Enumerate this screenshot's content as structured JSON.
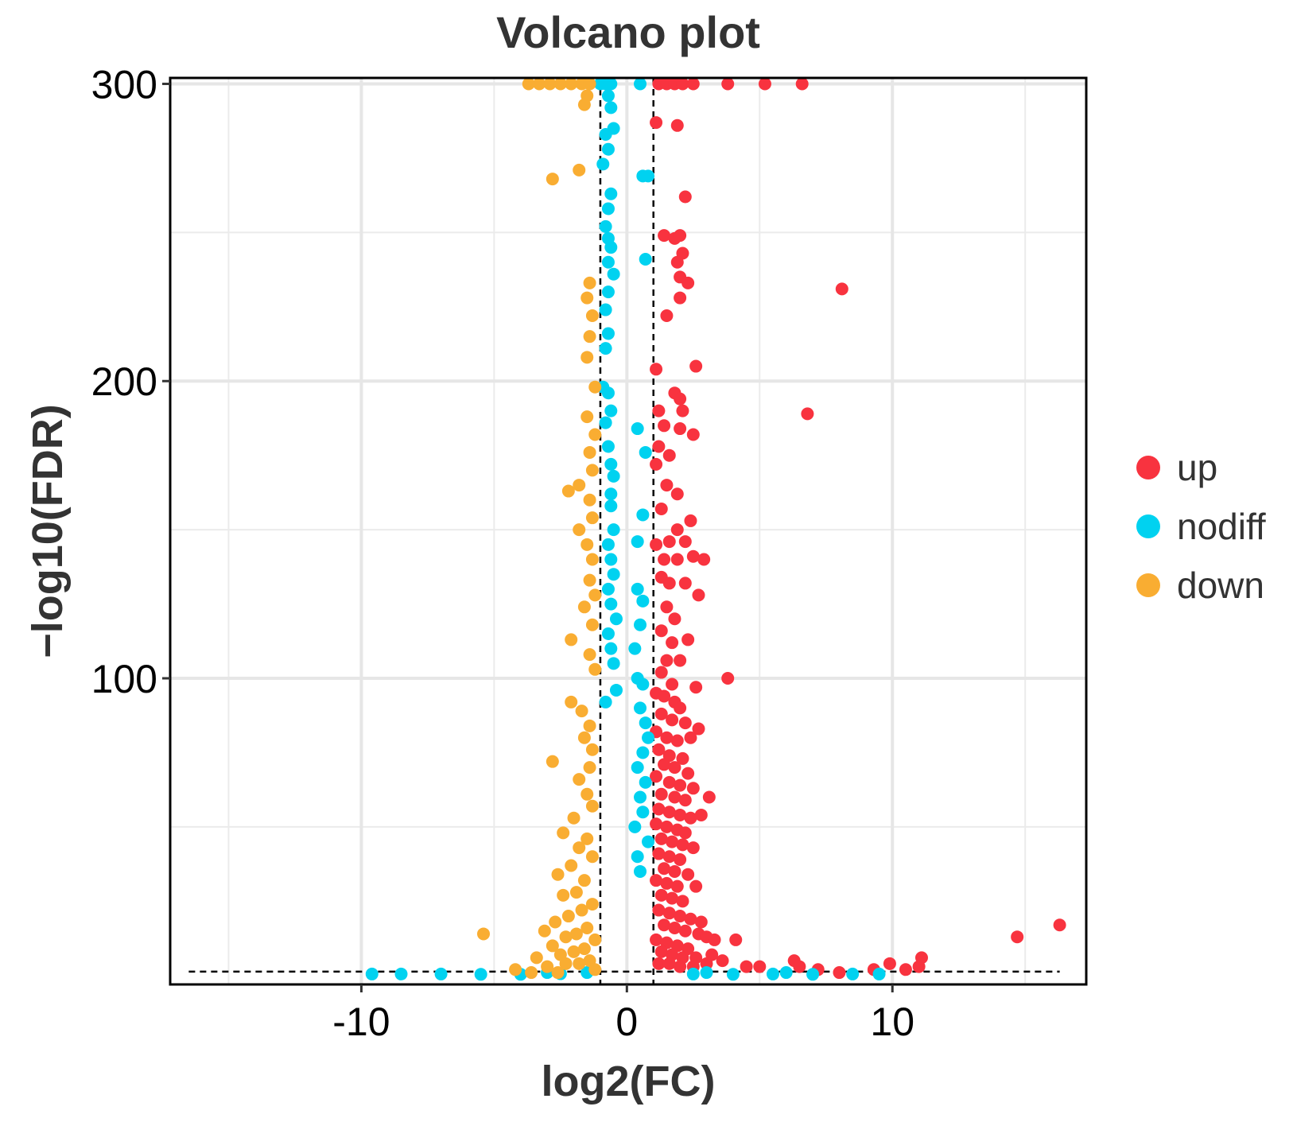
{
  "chart_data": {
    "type": "scatter",
    "title": "Volcano plot",
    "xlabel": "log2(FC)",
    "ylabel": "−log10(FDR)",
    "xlim": [
      -17.2,
      17.3
    ],
    "ylim": [
      -3,
      302
    ],
    "x_ticks": [
      -10,
      0,
      10
    ],
    "x_tick_labels": [
      "-10",
      "0",
      "10"
    ],
    "y_ticks": [
      100,
      200,
      300
    ],
    "y_tick_labels": [
      "100",
      "200",
      "300"
    ],
    "threshold_lines": {
      "log2fc": [
        -1,
        1
      ],
      "neg_log10_fdr": 1.3
    },
    "grid": true,
    "legend_position": "right",
    "series": [
      {
        "name": "up",
        "color": "#f8333f",
        "points": [
          [
            1.2,
            300
          ],
          [
            1.5,
            300
          ],
          [
            1.8,
            300
          ],
          [
            2.1,
            300
          ],
          [
            2.5,
            300
          ],
          [
            3.8,
            300
          ],
          [
            5.2,
            300
          ],
          [
            6.6,
            300
          ],
          [
            1.1,
            287
          ],
          [
            1.9,
            286
          ],
          [
            2.2,
            262
          ],
          [
            1.4,
            249
          ],
          [
            1.8,
            248
          ],
          [
            2.0,
            249
          ],
          [
            2.1,
            243
          ],
          [
            1.9,
            240
          ],
          [
            2.0,
            235
          ],
          [
            2.3,
            233
          ],
          [
            2.0,
            228
          ],
          [
            1.5,
            222
          ],
          [
            8.1,
            231
          ],
          [
            2.6,
            205
          ],
          [
            1.1,
            204
          ],
          [
            1.8,
            196
          ],
          [
            2.0,
            194
          ],
          [
            1.2,
            190
          ],
          [
            1.4,
            185
          ],
          [
            2.1,
            190
          ],
          [
            2.5,
            182
          ],
          [
            2.0,
            184
          ],
          [
            6.8,
            189
          ],
          [
            1.2,
            178
          ],
          [
            1.6,
            175
          ],
          [
            1.1,
            172
          ],
          [
            1.5,
            165
          ],
          [
            1.9,
            162
          ],
          [
            1.3,
            157
          ],
          [
            2.4,
            153
          ],
          [
            1.9,
            150
          ],
          [
            1.6,
            146
          ],
          [
            2.2,
            146
          ],
          [
            1.1,
            145
          ],
          [
            1.4,
            140
          ],
          [
            1.9,
            140
          ],
          [
            2.5,
            141
          ],
          [
            2.9,
            140
          ],
          [
            1.3,
            134
          ],
          [
            1.6,
            132
          ],
          [
            2.2,
            132
          ],
          [
            2.7,
            128
          ],
          [
            1.5,
            124
          ],
          [
            1.8,
            120
          ],
          [
            1.3,
            116
          ],
          [
            1.7,
            112
          ],
          [
            2.3,
            113
          ],
          [
            1.5,
            106
          ],
          [
            2.0,
            106
          ],
          [
            1.3,
            102
          ],
          [
            1.7,
            98
          ],
          [
            2.6,
            97
          ],
          [
            3.8,
            100
          ],
          [
            1.1,
            95
          ],
          [
            1.4,
            94
          ],
          [
            1.8,
            92
          ],
          [
            2.0,
            90
          ],
          [
            1.3,
            88
          ],
          [
            1.7,
            86
          ],
          [
            2.2,
            85
          ],
          [
            2.7,
            83
          ],
          [
            1.1,
            82
          ],
          [
            1.5,
            80
          ],
          [
            1.9,
            79
          ],
          [
            2.4,
            80
          ],
          [
            1.2,
            76
          ],
          [
            1.6,
            74
          ],
          [
            2.1,
            73
          ],
          [
            1.4,
            71
          ],
          [
            1.8,
            70
          ],
          [
            2.3,
            68
          ],
          [
            1.1,
            67
          ],
          [
            1.6,
            65
          ],
          [
            2.0,
            64
          ],
          [
            2.5,
            63
          ],
          [
            1.3,
            61
          ],
          [
            1.8,
            60
          ],
          [
            2.2,
            59
          ],
          [
            3.1,
            60
          ],
          [
            1.2,
            56
          ],
          [
            1.6,
            55
          ],
          [
            2.0,
            54
          ],
          [
            2.4,
            53
          ],
          [
            2.8,
            54
          ],
          [
            1.1,
            51
          ],
          [
            1.5,
            50
          ],
          [
            1.9,
            49
          ],
          [
            2.2,
            48
          ],
          [
            1.3,
            46
          ],
          [
            1.7,
            45
          ],
          [
            2.1,
            44
          ],
          [
            2.5,
            43
          ],
          [
            1.2,
            41
          ],
          [
            1.6,
            40
          ],
          [
            2.0,
            39
          ],
          [
            1.4,
            36
          ],
          [
            1.8,
            35
          ],
          [
            2.3,
            34
          ],
          [
            1.1,
            32
          ],
          [
            1.5,
            31
          ],
          [
            1.9,
            30
          ],
          [
            2.6,
            30
          ],
          [
            1.3,
            27
          ],
          [
            1.7,
            26
          ],
          [
            2.1,
            25
          ],
          [
            1.2,
            22
          ],
          [
            1.6,
            21
          ],
          [
            2.0,
            20
          ],
          [
            2.4,
            19
          ],
          [
            2.8,
            18
          ],
          [
            1.4,
            17
          ],
          [
            1.8,
            16
          ],
          [
            2.2,
            15
          ],
          [
            2.7,
            14
          ],
          [
            3.0,
            13
          ],
          [
            1.1,
            12
          ],
          [
            1.5,
            11
          ],
          [
            1.9,
            10
          ],
          [
            2.3,
            9
          ],
          [
            3.3,
            12
          ],
          [
            4.1,
            12
          ],
          [
            1.3,
            8
          ],
          [
            1.7,
            7
          ],
          [
            2.1,
            6
          ],
          [
            2.6,
            6
          ],
          [
            3.2,
            7
          ],
          [
            3.6,
            5
          ],
          [
            1.2,
            4
          ],
          [
            1.6,
            4
          ],
          [
            2.0,
            3
          ],
          [
            2.5,
            3
          ],
          [
            3.0,
            4
          ],
          [
            4.5,
            3
          ],
          [
            5.0,
            3
          ],
          [
            6.3,
            5
          ],
          [
            6.5,
            3
          ],
          [
            7.2,
            2
          ],
          [
            8.0,
            1
          ],
          [
            9.3,
            2
          ],
          [
            9.9,
            4
          ],
          [
            10.5,
            2
          ],
          [
            11.0,
            3
          ],
          [
            11.1,
            6
          ],
          [
            14.7,
            13
          ],
          [
            16.3,
            17
          ]
        ]
      },
      {
        "name": "nodiff",
        "color": "#00d2f0",
        "points": [
          [
            -1.0,
            300
          ],
          [
            -0.8,
            300
          ],
          [
            -0.6,
            300
          ],
          [
            0.5,
            300
          ],
          [
            -0.7,
            296
          ],
          [
            -0.6,
            292
          ],
          [
            -0.5,
            285
          ],
          [
            -0.8,
            283
          ],
          [
            -0.7,
            278
          ],
          [
            -0.9,
            273
          ],
          [
            0.6,
            269
          ],
          [
            0.8,
            269
          ],
          [
            -0.6,
            263
          ],
          [
            -0.7,
            258
          ],
          [
            -0.8,
            252
          ],
          [
            -0.7,
            248
          ],
          [
            -0.6,
            245
          ],
          [
            -0.7,
            240
          ],
          [
            -0.5,
            236
          ],
          [
            0.7,
            241
          ],
          [
            -0.7,
            230
          ],
          [
            -0.8,
            224
          ],
          [
            -0.7,
            216
          ],
          [
            -0.8,
            211
          ],
          [
            -0.9,
            198
          ],
          [
            -0.7,
            196
          ],
          [
            -0.6,
            190
          ],
          [
            -0.8,
            186
          ],
          [
            0.4,
            184
          ],
          [
            -0.7,
            178
          ],
          [
            -0.6,
            172
          ],
          [
            0.7,
            176
          ],
          [
            -0.5,
            168
          ],
          [
            -0.6,
            162
          ],
          [
            -0.6,
            158
          ],
          [
            0.6,
            155
          ],
          [
            -0.5,
            150
          ],
          [
            -0.7,
            145
          ],
          [
            -0.6,
            140
          ],
          [
            0.4,
            146
          ],
          [
            -0.5,
            135
          ],
          [
            -0.7,
            130
          ],
          [
            0.4,
            130
          ],
          [
            -0.6,
            125
          ],
          [
            0.6,
            126
          ],
          [
            -0.4,
            120
          ],
          [
            -0.7,
            115
          ],
          [
            0.5,
            118
          ],
          [
            -0.6,
            110
          ],
          [
            0.3,
            110
          ],
          [
            -0.5,
            105
          ],
          [
            0.4,
            100
          ],
          [
            0.6,
            98
          ],
          [
            -0.4,
            96
          ],
          [
            -0.8,
            92
          ],
          [
            0.5,
            90
          ],
          [
            0.7,
            85
          ],
          [
            0.8,
            80
          ],
          [
            0.6,
            75
          ],
          [
            0.4,
            70
          ],
          [
            0.7,
            65
          ],
          [
            0.5,
            60
          ],
          [
            0.6,
            55
          ],
          [
            0.3,
            50
          ],
          [
            0.8,
            45
          ],
          [
            0.4,
            40
          ],
          [
            0.5,
            35
          ],
          [
            -9.6,
            0.5
          ],
          [
            -8.5,
            0.5
          ],
          [
            -7.0,
            0.5
          ],
          [
            -5.5,
            0.4
          ],
          [
            -4.0,
            0.4
          ],
          [
            -2.5,
            0.6
          ],
          [
            2.5,
            0.5
          ],
          [
            4.0,
            0.4
          ],
          [
            5.5,
            0.5
          ],
          [
            7.0,
            0.4
          ],
          [
            8.5,
            0.5
          ],
          [
            9.5,
            0.5
          ],
          [
            -1.5,
            1
          ],
          [
            -3.0,
            1
          ],
          [
            3.0,
            1
          ],
          [
            6.0,
            1
          ]
        ]
      },
      {
        "name": "down",
        "color": "#f9ad32",
        "points": [
          [
            -3.7,
            300
          ],
          [
            -3.3,
            300
          ],
          [
            -2.9,
            300
          ],
          [
            -2.5,
            300
          ],
          [
            -2.1,
            300
          ],
          [
            -1.7,
            300
          ],
          [
            -1.4,
            300
          ],
          [
            -1.5,
            296
          ],
          [
            -1.6,
            293
          ],
          [
            -1.8,
            271
          ],
          [
            -2.8,
            268
          ],
          [
            -1.4,
            233
          ],
          [
            -1.5,
            228
          ],
          [
            -1.3,
            222
          ],
          [
            -1.4,
            215
          ],
          [
            -1.5,
            208
          ],
          [
            -1.2,
            198
          ],
          [
            -1.5,
            188
          ],
          [
            -1.2,
            182
          ],
          [
            -1.4,
            176
          ],
          [
            -1.3,
            170
          ],
          [
            -1.8,
            165
          ],
          [
            -2.2,
            163
          ],
          [
            -1.4,
            160
          ],
          [
            -1.3,
            154
          ],
          [
            -1.8,
            150
          ],
          [
            -1.5,
            145
          ],
          [
            -1.3,
            140
          ],
          [
            -1.4,
            133
          ],
          [
            -1.2,
            128
          ],
          [
            -1.6,
            124
          ],
          [
            -1.3,
            118
          ],
          [
            -2.1,
            113
          ],
          [
            -1.4,
            108
          ],
          [
            -1.2,
            103
          ],
          [
            -2.1,
            92
          ],
          [
            -1.7,
            89
          ],
          [
            -1.4,
            84
          ],
          [
            -1.6,
            80
          ],
          [
            -1.3,
            76
          ],
          [
            -2.8,
            72
          ],
          [
            -1.4,
            70
          ],
          [
            -1.8,
            66
          ],
          [
            -1.5,
            61
          ],
          [
            -1.3,
            57
          ],
          [
            -2.0,
            53
          ],
          [
            -2.4,
            48
          ],
          [
            -1.5,
            46
          ],
          [
            -1.8,
            43
          ],
          [
            -1.3,
            40
          ],
          [
            -2.1,
            37
          ],
          [
            -2.6,
            34
          ],
          [
            -1.6,
            32
          ],
          [
            -1.9,
            28
          ],
          [
            -2.4,
            27
          ],
          [
            -1.3,
            24
          ],
          [
            -1.7,
            22
          ],
          [
            -2.2,
            20
          ],
          [
            -2.7,
            18
          ],
          [
            -1.5,
            16
          ],
          [
            -1.9,
            14
          ],
          [
            -2.3,
            13
          ],
          [
            -1.2,
            12
          ],
          [
            -3.1,
            15
          ],
          [
            -5.4,
            14
          ],
          [
            -2.8,
            10
          ],
          [
            -1.6,
            9
          ],
          [
            -2.0,
            8
          ],
          [
            -2.5,
            7
          ],
          [
            -3.4,
            6
          ],
          [
            -1.4,
            5
          ],
          [
            -1.8,
            4
          ],
          [
            -2.3,
            4
          ],
          [
            -3.0,
            3
          ],
          [
            -4.2,
            2
          ],
          [
            -1.2,
            2
          ],
          [
            -3.6,
            1
          ],
          [
            -2.6,
            1
          ]
        ]
      }
    ]
  }
}
